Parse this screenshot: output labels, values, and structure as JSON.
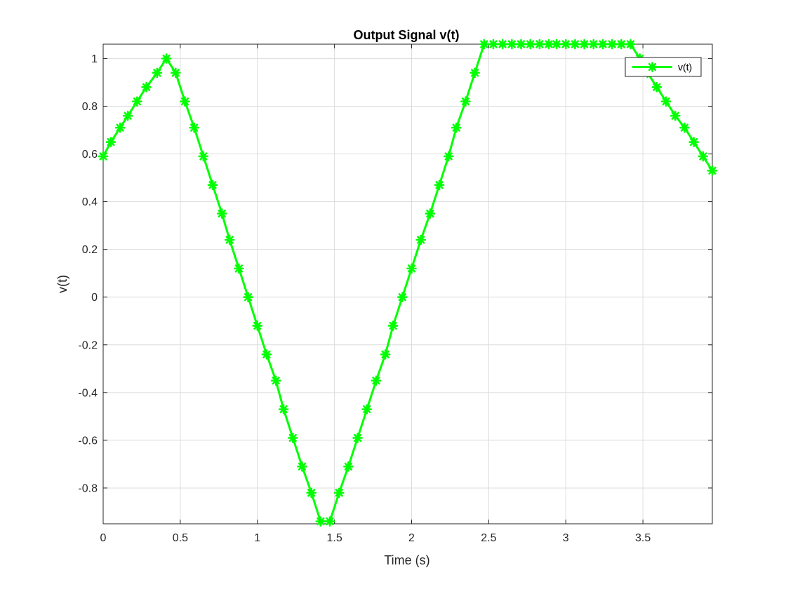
{
  "chart_data": {
    "type": "line",
    "title": "Output Signal v(t)",
    "xlabel": "Time (s)",
    "ylabel": "v(t)",
    "xlim": [
      0,
      3.95
    ],
    "ylim": [
      -0.95,
      1.06
    ],
    "grid": true,
    "legend_location": "top-right",
    "x_ticks": [
      0,
      0.5,
      1,
      1.5,
      2,
      2.5,
      3,
      3.5
    ],
    "x_tick_labels": [
      "0",
      "0.5",
      "1",
      "1.5",
      "2",
      "2.5",
      "3",
      "3.5"
    ],
    "y_ticks": [
      -0.8,
      -0.6,
      -0.4,
      -0.2,
      0,
      0.2,
      0.4,
      0.6,
      0.8,
      1
    ],
    "y_tick_labels": [
      "-0.8",
      "-0.6",
      "-0.4",
      "-0.2",
      "0",
      "0.2",
      "0.4",
      "0.6",
      "0.8",
      "1"
    ],
    "series": [
      {
        "name": "v(t)",
        "color": "#00ff00",
        "marker": "asterisk",
        "x": [
          0,
          0.05,
          0.11,
          0.16,
          0.22,
          0.28,
          0.35,
          0.41,
          0.47,
          0.53,
          0.59,
          0.65,
          0.71,
          0.77,
          0.82,
          0.88,
          0.94,
          1.0,
          1.06,
          1.12,
          1.17,
          1.23,
          1.29,
          1.35,
          1.41,
          1.47,
          1.53,
          1.59,
          1.65,
          1.71,
          1.77,
          1.83,
          1.88,
          1.94,
          2.0,
          2.06,
          2.12,
          2.18,
          2.24,
          2.29,
          2.35,
          2.41,
          2.47,
          2.53,
          2.59,
          2.65,
          2.71,
          2.77,
          2.83,
          2.89,
          2.94,
          3.0,
          3.06,
          3.12,
          3.18,
          3.24,
          3.3,
          3.36,
          3.42,
          3.48,
          3.53,
          3.59,
          3.65,
          3.71,
          3.77,
          3.83,
          3.89,
          3.95
        ],
        "y": [
          0.59,
          0.65,
          0.71,
          0.76,
          0.82,
          0.88,
          0.94,
          1.0,
          0.94,
          0.82,
          0.71,
          0.59,
          0.47,
          0.35,
          0.24,
          0.12,
          0.0,
          -0.12,
          -0.24,
          -0.35,
          -0.47,
          -0.59,
          -0.71,
          -0.82,
          -0.94,
          -0.94,
          -0.82,
          -0.71,
          -0.59,
          -0.47,
          -0.35,
          -0.24,
          -0.12,
          0.0,
          0.12,
          0.24,
          0.35,
          0.47,
          0.59,
          0.71,
          0.82,
          0.94,
          1.06,
          1.06,
          1.06,
          1.06,
          1.06,
          1.06,
          1.06,
          1.06,
          1.06,
          1.06,
          1.06,
          1.06,
          1.06,
          1.06,
          1.06,
          1.06,
          1.06,
          1.0,
          0.94,
          0.88,
          0.82,
          0.76,
          0.71,
          0.65,
          0.59,
          0.53
        ]
      }
    ]
  }
}
